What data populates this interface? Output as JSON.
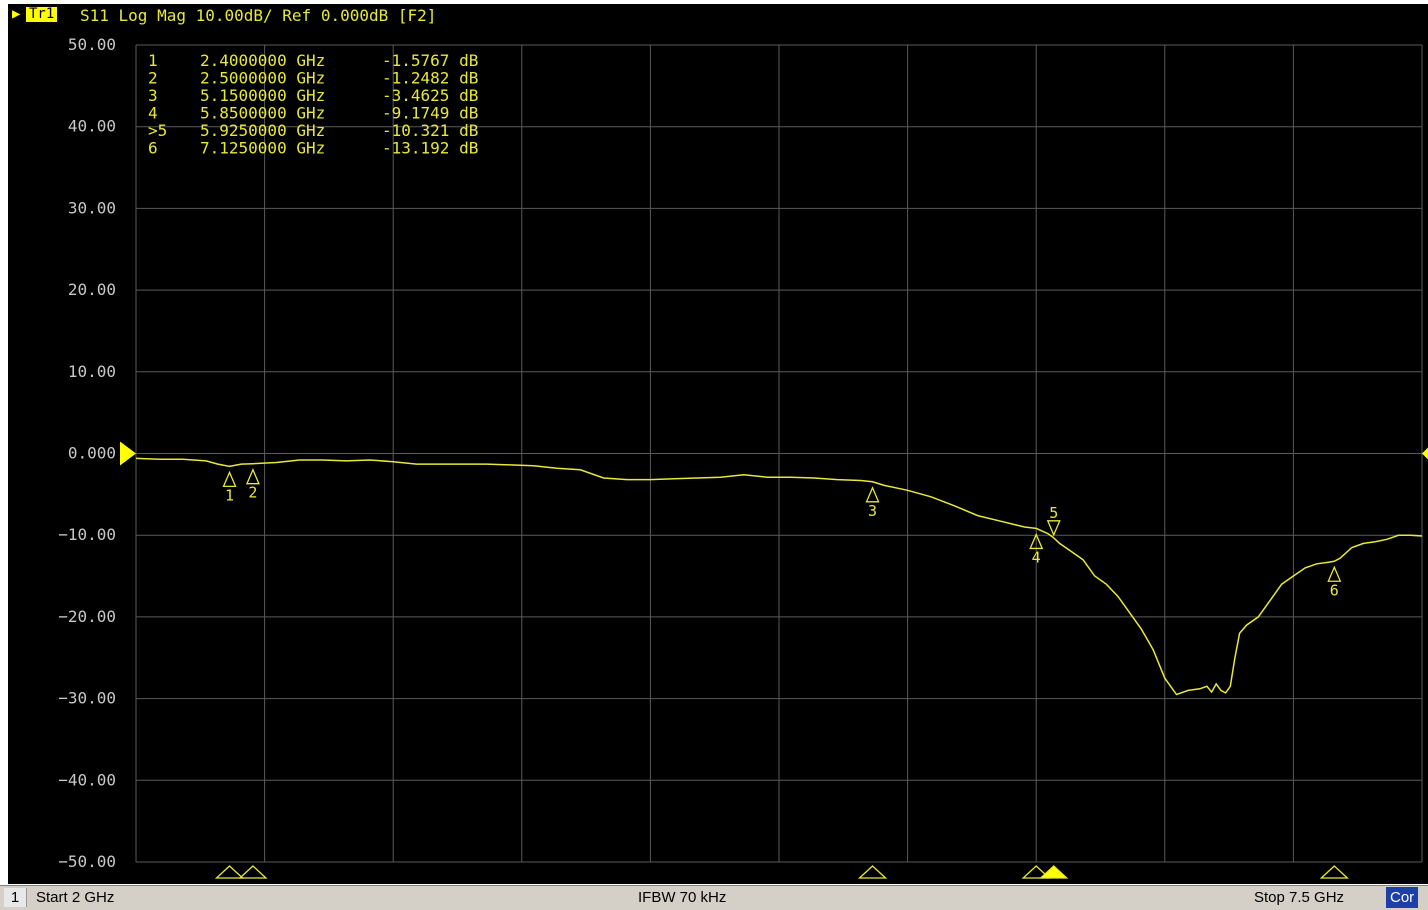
{
  "header": {
    "trace_badge": "Tr1",
    "trace_info": "S11 Log Mag 10.00dB/ Ref 0.000dB [F2]"
  },
  "colors": {
    "background": "#000000",
    "grid": "#5a5a5a",
    "trace": "#e8e838",
    "text": "#e8e838",
    "statusbar": "#d4d0c8",
    "cor_badge": "#1c3fa8"
  },
  "status": {
    "channel": "1",
    "start": "Start 2 GHz",
    "ifbw": "IFBW 70 kHz",
    "stop": "Stop 7.5 GHz",
    "cor": "Cor"
  },
  "marker_table": [
    {
      "label": " 1",
      "freq": "2.4000000 GHz",
      "value": "-1.5767 dB"
    },
    {
      "label": " 2",
      "freq": "2.5000000 GHz",
      "value": "-1.2482 dB"
    },
    {
      "label": " 3",
      "freq": "5.1500000 GHz",
      "value": "-3.4625 dB"
    },
    {
      "label": " 4",
      "freq": "5.8500000 GHz",
      "value": "-9.1749 dB"
    },
    {
      "label": ">5",
      "freq": "5.9250000 GHz",
      "value": "-10.321 dB"
    },
    {
      "label": " 6",
      "freq": "7.1250000 GHz",
      "value": "-13.192 dB"
    }
  ],
  "chart_data": {
    "type": "line",
    "xlim": [
      2.0,
      7.5
    ],
    "ylim": [
      -50,
      50
    ],
    "yticks": [
      50,
      40,
      30,
      20,
      10,
      0,
      -10,
      -20,
      -30,
      -40,
      -50
    ],
    "ytick_labels": [
      "50.00",
      "40.00",
      "30.00",
      "20.00",
      "10.00",
      "0.000",
      "−10.00",
      "−20.00",
      "−30.00",
      "−40.00",
      "−50.00"
    ],
    "grid": true,
    "reference_level": 0,
    "series": [
      {
        "name": "S11",
        "x": [
          2.0,
          2.1,
          2.2,
          2.3,
          2.35,
          2.4,
          2.45,
          2.5,
          2.6,
          2.7,
          2.8,
          2.9,
          3.0,
          3.1,
          3.2,
          3.3,
          3.4,
          3.5,
          3.6,
          3.7,
          3.8,
          3.9,
          4.0,
          4.1,
          4.2,
          4.3,
          4.4,
          4.5,
          4.6,
          4.7,
          4.8,
          4.9,
          5.0,
          5.1,
          5.15,
          5.2,
          5.3,
          5.4,
          5.5,
          5.6,
          5.7,
          5.8,
          5.85,
          5.9,
          5.925,
          5.95,
          6.0,
          6.05,
          6.1,
          6.15,
          6.2,
          6.25,
          6.3,
          6.35,
          6.4,
          6.45,
          6.5,
          6.55,
          6.58,
          6.6,
          6.62,
          6.64,
          6.66,
          6.68,
          6.7,
          6.72,
          6.75,
          6.8,
          6.85,
          6.9,
          6.95,
          7.0,
          7.05,
          7.1,
          7.125,
          7.15,
          7.2,
          7.25,
          7.3,
          7.35,
          7.4,
          7.45,
          7.5
        ],
        "y": [
          -0.6,
          -0.7,
          -0.7,
          -0.9,
          -1.3,
          -1.58,
          -1.3,
          -1.25,
          -1.1,
          -0.8,
          -0.8,
          -0.9,
          -0.8,
          -1.0,
          -1.3,
          -1.3,
          -1.3,
          -1.3,
          -1.4,
          -1.5,
          -1.8,
          -2.0,
          -3.0,
          -3.2,
          -3.2,
          -3.1,
          -3.0,
          -2.9,
          -2.6,
          -2.9,
          -2.9,
          -3.0,
          -3.2,
          -3.3,
          -3.46,
          -3.9,
          -4.5,
          -5.3,
          -6.4,
          -7.6,
          -8.3,
          -9.0,
          -9.17,
          -9.8,
          -10.32,
          -11.0,
          -12.0,
          -13.0,
          -15.0,
          -16.0,
          -17.5,
          -19.5,
          -21.5,
          -24.0,
          -27.5,
          -29.5,
          -29.0,
          -28.8,
          -28.5,
          -29.2,
          -28.2,
          -29.0,
          -29.3,
          -28.5,
          -25.0,
          -22.0,
          -21.0,
          -20.0,
          -18.0,
          -16.0,
          -15.0,
          -14.0,
          -13.5,
          -13.3,
          -13.19,
          -12.8,
          -11.5,
          -11.0,
          -10.8,
          -10.5,
          -10.0,
          -10.0,
          -10.1
        ]
      }
    ],
    "markers": [
      {
        "id": "1",
        "x": 2.4,
        "y": -1.5767,
        "dir": "up"
      },
      {
        "id": "2",
        "x": 2.5,
        "y": -1.2482,
        "dir": "up"
      },
      {
        "id": "3",
        "x": 5.15,
        "y": -3.4625,
        "dir": "up"
      },
      {
        "id": "4",
        "x": 5.85,
        "y": -9.1749,
        "dir": "up"
      },
      {
        "id": "5",
        "x": 5.925,
        "y": -10.321,
        "dir": "down",
        "active": true
      },
      {
        "id": "6",
        "x": 7.125,
        "y": -13.192,
        "dir": "up"
      }
    ]
  }
}
